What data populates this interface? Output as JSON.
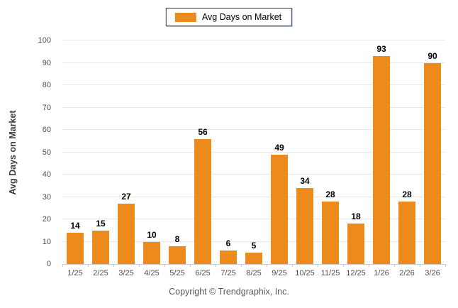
{
  "legend": {
    "label": "Avg Days on Market",
    "swatch_icon": "orange-square-swatch",
    "swatch_color": "#ED8A1D"
  },
  "footer": {
    "text": "Copyright © Trendgraphix, Inc."
  },
  "chart_data": {
    "type": "bar",
    "title": "",
    "categories": [
      "1/25",
      "2/25",
      "3/25",
      "4/25",
      "5/25",
      "6/25",
      "7/25",
      "8/25",
      "9/25",
      "10/25",
      "11/25",
      "12/25",
      "1/26",
      "2/26",
      "3/26"
    ],
    "values": [
      14,
      15,
      27,
      10,
      8,
      56,
      6,
      5,
      49,
      34,
      28,
      18,
      93,
      28,
      90
    ],
    "xlabel": "",
    "ylabel": "Avg Days on Market",
    "ylim": [
      0,
      100
    ],
    "ytick_step": 10,
    "yticks": [
      0,
      10,
      20,
      30,
      40,
      50,
      60,
      70,
      80,
      90,
      100
    ],
    "grid": "horizontal",
    "legend_position": "top-center",
    "bar_color": "#ED8A1D",
    "value_labels": true
  },
  "colors": {
    "bar": "#ED8A1D",
    "gridline": "#E7E7E7",
    "axis_line": "#CCCCCC",
    "tick_text": "#4D4D4D",
    "value_label_text": "#000000",
    "y_title_text": "#3D3D3D",
    "footer_text": "#595959",
    "legend_border": "#30435F",
    "background": "#FFFFFF"
  }
}
